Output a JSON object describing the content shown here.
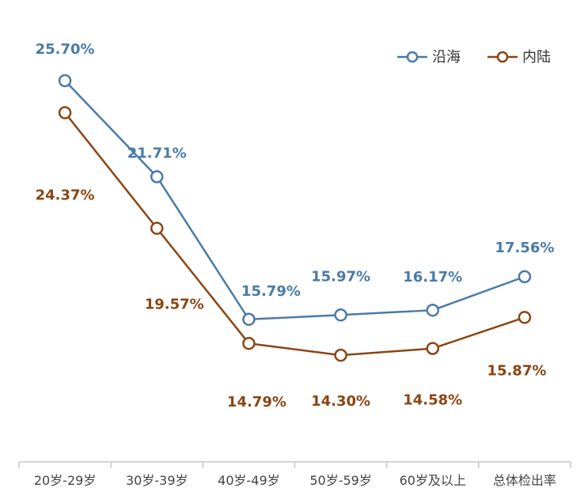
{
  "chart_data": {
    "type": "line",
    "categories": [
      "20岁-29岁",
      "30岁-39岁",
      "40岁-49岁",
      "50岁-59岁",
      "60岁及以上",
      "总体检出率"
    ],
    "series": [
      {
        "name": "沿海",
        "color": "#4a7aa8",
        "values": [
          25.7,
          21.71,
          15.79,
          15.97,
          16.17,
          17.56
        ],
        "labels": [
          "25.70%",
          "21.71%",
          "15.79%",
          "15.97%",
          "16.17%",
          "17.56%"
        ]
      },
      {
        "name": "内陆",
        "color": "#8b4513",
        "values": [
          24.37,
          19.57,
          14.79,
          14.3,
          14.58,
          15.87
        ],
        "labels": [
          "24.37%",
          "19.57%",
          "14.79%",
          "14.30%",
          "14.58%",
          "15.87%"
        ]
      }
    ],
    "legend_position": "top-right",
    "grid": false,
    "xlabel": "",
    "ylabel": ""
  }
}
